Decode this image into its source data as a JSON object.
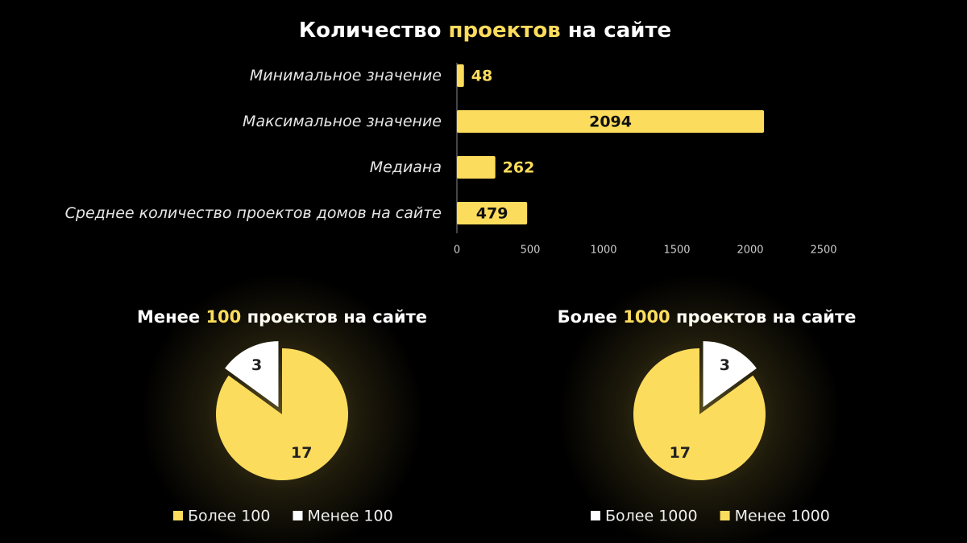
{
  "chart_data": [
    {
      "type": "barh",
      "title": [
        "Количество",
        "проектов",
        "на сайте"
      ],
      "categories": [
        "Минимальное значение",
        "Максимальное значение",
        "Медиана",
        "Среднее количество проектов домов на сайте"
      ],
      "values": [
        48,
        2094,
        262,
        479
      ],
      "color": "#fcdc5c",
      "xlim": [
        0,
        2500
      ],
      "xticks": [
        0,
        500,
        1000,
        1500,
        2000,
        2500
      ]
    },
    {
      "type": "pie",
      "title": [
        "Менее",
        "100",
        "проектов на сайте"
      ],
      "categories": [
        "Более 100",
        "Менее 100"
      ],
      "values": [
        17,
        3
      ],
      "colors": [
        "#fcdc5c",
        "#ffffff"
      ]
    },
    {
      "type": "pie",
      "title": [
        "Более",
        "1000",
        "проектов на сайте"
      ],
      "categories": [
        "Более 1000",
        "Менее 1000"
      ],
      "values": [
        3,
        17
      ],
      "colors": [
        "#ffffff",
        "#fcdc5c"
      ]
    }
  ]
}
